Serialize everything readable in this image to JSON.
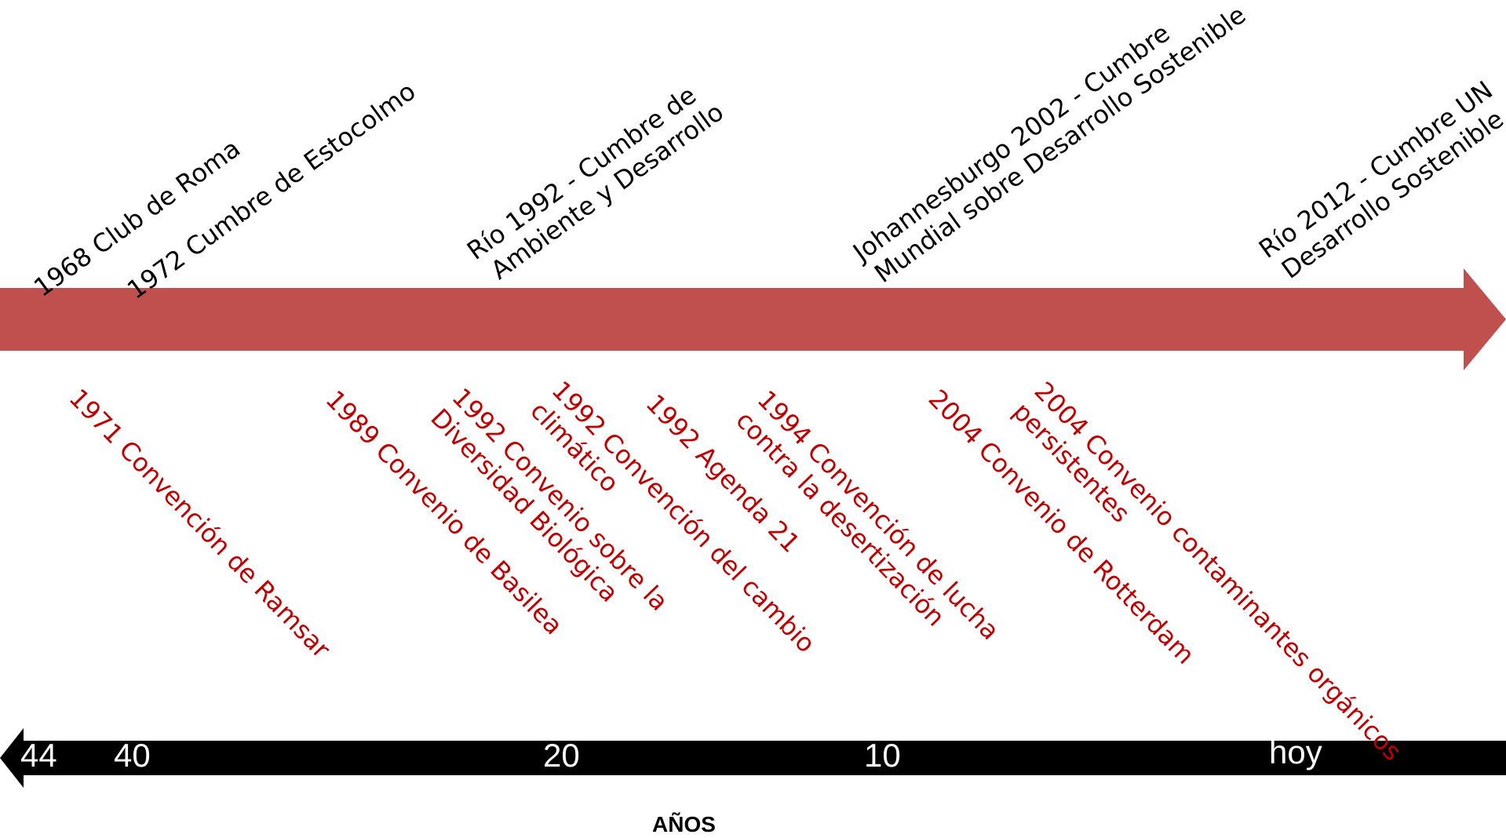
{
  "colors": {
    "timeline": "#c0504d",
    "convention_text": "#c00000",
    "event_text": "#000000",
    "axis": "#000000",
    "tick_text": "#ffffff"
  },
  "events_above": [
    {
      "lines": [
        "1968 Club de Roma"
      ]
    },
    {
      "lines": [
        "1972 Cumbre de Estocolmo"
      ]
    },
    {
      "lines": [
        "Río 1992 - Cumbre de",
        "Ambiente y Desarrollo"
      ]
    },
    {
      "lines": [
        "Johannesburgo 2002 - Cumbre",
        "Mundial sobre Desarrollo  Sostenible"
      ]
    },
    {
      "lines": [
        "Río 2012 - Cumbre UN",
        "Desarrollo  Sostenible"
      ]
    }
  ],
  "events_below": [
    {
      "lines": [
        "1971 Convención de Ramsar"
      ]
    },
    {
      "lines": [
        "1989 Convenio de Basilea"
      ]
    },
    {
      "lines": [
        "1992 Convenio sobre la",
        "Diversidad Biológica"
      ]
    },
    {
      "lines": [
        "1992 Convención del cambio",
        "climático"
      ]
    },
    {
      "lines": [
        "1992 Agenda 21"
      ]
    },
    {
      "lines": [
        "1994 Convención de lucha",
        "contra la desertización"
      ]
    },
    {
      "lines": [
        "2004 Convenio de Rotterdam"
      ]
    },
    {
      "lines": [
        "2004 Convenio contaminantes  orgánicos",
        "persistentes"
      ]
    }
  ],
  "axis": {
    "ticks": [
      "44",
      "40",
      "20",
      "10",
      "hoy"
    ],
    "label": "AÑOS"
  }
}
